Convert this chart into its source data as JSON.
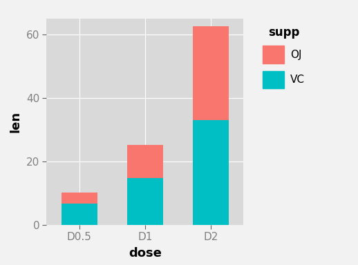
{
  "categories": [
    "D0.5",
    "D1",
    "D2"
  ],
  "vc_values": [
    6.8,
    14.8,
    33.0
  ],
  "oj_values": [
    3.4,
    10.5,
    29.6
  ],
  "vc_color": "#00BFC4",
  "oj_color": "#F8766D",
  "bar_width": 0.55,
  "xlabel": "dose",
  "ylabel": "len",
  "ylim": [
    0,
    65
  ],
  "yticks": [
    0,
    20,
    40,
    60
  ],
  "legend_title": "supp",
  "bg_color": "#D9D9D9",
  "grid_color": "#FFFFFF",
  "legend_title_fontsize": 12,
  "legend_label_fontsize": 11,
  "axis_label_fontsize": 13,
  "tick_label_fontsize": 11,
  "fig_bg_color": "#F2F2F2"
}
